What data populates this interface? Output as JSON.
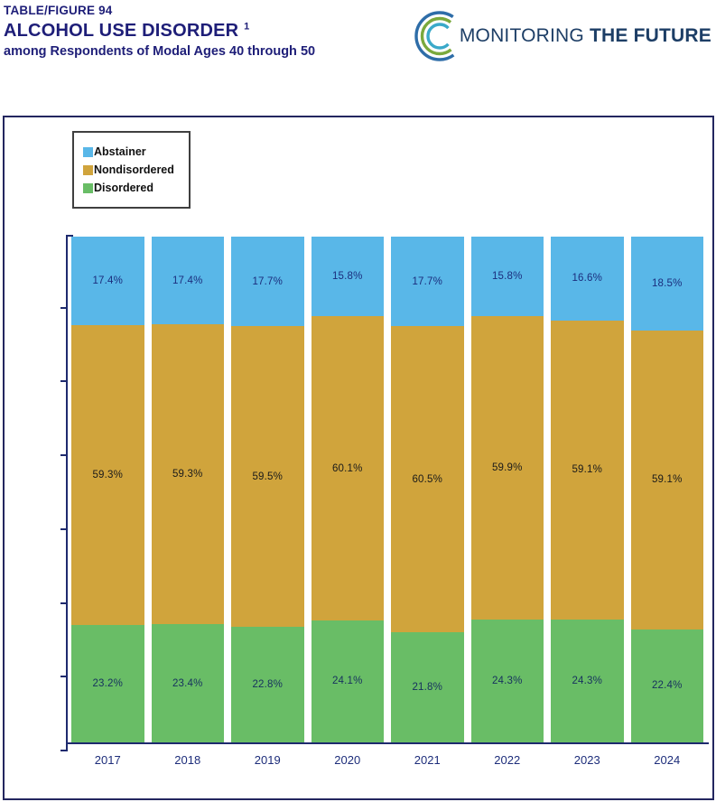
{
  "header": {
    "figure_label": "TABLE/FIGURE 94",
    "title": "ALCOHOL USE DISORDER",
    "title_superscript": "1",
    "subtitle": "among Respondents of Modal Ages 40 through 50"
  },
  "logo": {
    "text_regular": "MONITORING ",
    "text_bold": "THE FUTURE",
    "arc_colors": [
      "#2e6da8",
      "#7aa93c",
      "#3aa9c9"
    ]
  },
  "legend": {
    "items": [
      {
        "label": "Abstainer",
        "color": "#59b7e8"
      },
      {
        "label": "Nondisordered",
        "color": "#d0a43c"
      },
      {
        "label": "Disordered",
        "color": "#69bd66"
      }
    ]
  },
  "chart_data": {
    "type": "bar",
    "stacked": true,
    "title": "ALCOHOL USE DISORDER among Respondents of Modal Ages 40 through 50",
    "categories": [
      "2017",
      "2018",
      "2019",
      "2020",
      "2021",
      "2022",
      "2023",
      "2024"
    ],
    "series": [
      {
        "name": "Abstainer",
        "color": "#59b7e8",
        "label_color": "#1b2d7d",
        "values": [
          17.4,
          17.4,
          17.7,
          15.8,
          17.7,
          15.8,
          16.6,
          18.5
        ]
      },
      {
        "name": "Nondisordered",
        "color": "#d0a43c",
        "label_color": "#1a1a1a",
        "values": [
          59.3,
          59.3,
          59.5,
          60.1,
          60.5,
          59.9,
          59.1,
          59.1
        ]
      },
      {
        "name": "Disordered",
        "color": "#69bd66",
        "label_color": "#16305e",
        "values": [
          23.2,
          23.4,
          22.8,
          24.1,
          21.8,
          24.3,
          24.3,
          22.4
        ]
      }
    ],
    "ylim": [
      0,
      100
    ],
    "value_suffix": "%",
    "xlabel": "",
    "ylabel": "",
    "legend_position": "top-left",
    "grid": false
  }
}
